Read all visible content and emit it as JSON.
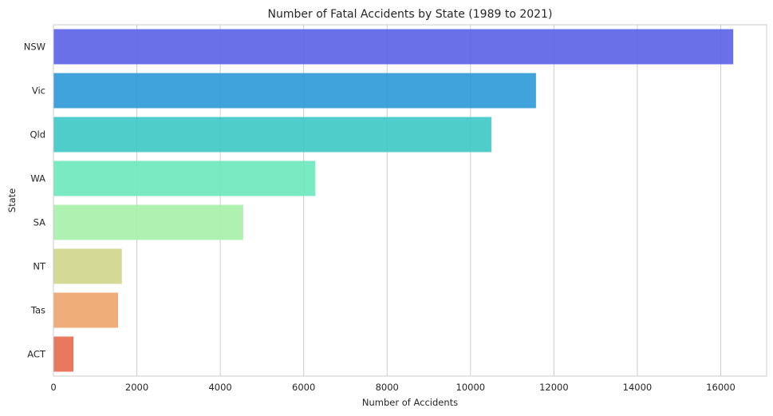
{
  "chart_data": {
    "type": "bar",
    "orientation": "horizontal",
    "title": "Number of Fatal Accidents by State (1989 to 2021)",
    "xlabel": "Number of Accidents",
    "ylabel": "State",
    "categories": [
      "NSW",
      "Vic",
      "Qld",
      "WA",
      "SA",
      "NT",
      "Tas",
      "ACT"
    ],
    "values": [
      16300,
      11570,
      10500,
      6280,
      4550,
      1640,
      1550,
      480
    ],
    "colors": [
      "#5a62e6",
      "#2b99d7",
      "#3bc8c5",
      "#6ce8bd",
      "#a6efa8",
      "#cfd58a",
      "#eca46a",
      "#e66a4c"
    ],
    "xlim": [
      0,
      17100
    ],
    "xticks": [
      0,
      2000,
      4000,
      6000,
      8000,
      10000,
      12000,
      14000,
      16000
    ],
    "grid": true
  }
}
